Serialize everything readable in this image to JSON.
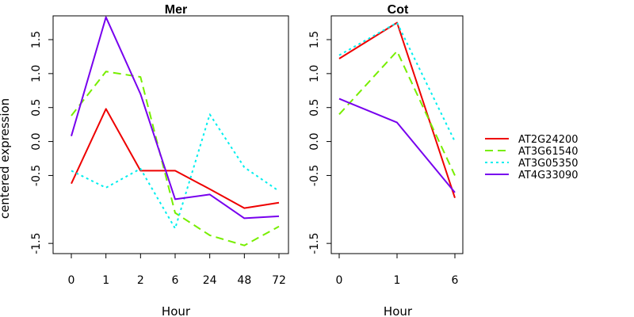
{
  "chart_data": [
    {
      "type": "line",
      "title": "Mer",
      "xlabel": "Hour",
      "ylabel": "centered expression",
      "categories": [
        "0",
        "1",
        "2",
        "6",
        "24",
        "48",
        "72"
      ],
      "y_ticks": [
        "-1.5",
        "-0.5",
        "0.0",
        "0.5",
        "1.0",
        "1.5"
      ],
      "ylim": [
        -1.65,
        1.85
      ],
      "series": [
        {
          "name": "AT2G24200",
          "color": "#ee0000",
          "dash": "solid",
          "values": [
            -0.62,
            0.48,
            -0.43,
            -0.43,
            -0.7,
            -0.98,
            -0.9
          ]
        },
        {
          "name": "AT3G61540",
          "color": "#77ee00",
          "dash": "dashed",
          "values": [
            0.38,
            1.03,
            0.95,
            -1.05,
            -1.38,
            -1.53,
            -1.25
          ]
        },
        {
          "name": "AT3G05350",
          "color": "#00eeee",
          "dash": "dotted",
          "values": [
            -0.43,
            -0.68,
            -0.4,
            -1.28,
            0.4,
            -0.38,
            -0.73
          ]
        },
        {
          "name": "AT4G33090",
          "color": "#7700ee",
          "dash": "solid",
          "values": [
            0.08,
            1.83,
            0.7,
            -0.85,
            -0.78,
            -1.13,
            -1.1
          ]
        }
      ]
    },
    {
      "type": "line",
      "title": "Cot",
      "xlabel": "Hour",
      "ylabel": "",
      "categories": [
        "0",
        "1",
        "6"
      ],
      "y_ticks": [
        "-1.5",
        "-0.5",
        "0.0",
        "0.5",
        "1.0",
        "1.5"
      ],
      "ylim": [
        -1.65,
        1.85
      ],
      "series": [
        {
          "name": "AT2G24200",
          "color": "#ee0000",
          "dash": "solid",
          "values": [
            1.22,
            1.75,
            -0.83
          ]
        },
        {
          "name": "AT3G61540",
          "color": "#77ee00",
          "dash": "dashed",
          "values": [
            0.4,
            1.33,
            -0.5
          ]
        },
        {
          "name": "AT3G05350",
          "color": "#00eeee",
          "dash": "dotted",
          "values": [
            1.27,
            1.75,
            0.0
          ]
        },
        {
          "name": "AT4G33090",
          "color": "#7700ee",
          "dash": "solid",
          "values": [
            0.63,
            0.28,
            -0.75
          ]
        }
      ]
    }
  ],
  "legend": [
    {
      "label": "AT2G24200",
      "color": "#ee0000",
      "dash": "solid"
    },
    {
      "label": "AT3G61540",
      "color": "#77ee00",
      "dash": "dashed"
    },
    {
      "label": "AT3G05350",
      "color": "#00eeee",
      "dash": "dotted"
    },
    {
      "label": "AT4G33090",
      "color": "#7700ee",
      "dash": "solid"
    }
  ]
}
